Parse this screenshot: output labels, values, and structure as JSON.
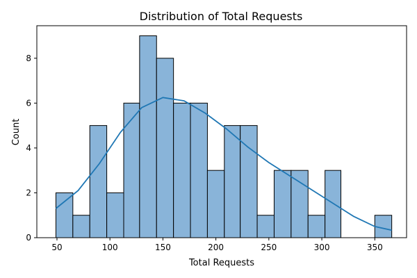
{
  "chart_data": {
    "type": "bar",
    "title": "Distribution of Total Requests",
    "xlabel": "Total Requests",
    "ylabel": "Count",
    "xlim": [
      31,
      380
    ],
    "ylim": [
      0,
      9.45
    ],
    "xticks": [
      50,
      100,
      150,
      200,
      250,
      300,
      350
    ],
    "yticks": [
      0,
      2,
      4,
      6,
      8
    ],
    "grid": false,
    "bins": [
      {
        "start": 49,
        "end": 65,
        "count": 2
      },
      {
        "start": 65,
        "end": 81,
        "count": 1
      },
      {
        "start": 81,
        "end": 97,
        "count": 5
      },
      {
        "start": 97,
        "end": 113,
        "count": 2
      },
      {
        "start": 113,
        "end": 128,
        "count": 6
      },
      {
        "start": 128,
        "end": 144,
        "count": 9
      },
      {
        "start": 144,
        "end": 160,
        "count": 8
      },
      {
        "start": 160,
        "end": 176,
        "count": 6
      },
      {
        "start": 176,
        "end": 192,
        "count": 6
      },
      {
        "start": 192,
        "end": 208,
        "count": 3
      },
      {
        "start": 208,
        "end": 223,
        "count": 5
      },
      {
        "start": 223,
        "end": 239,
        "count": 5
      },
      {
        "start": 239,
        "end": 255,
        "count": 1
      },
      {
        "start": 255,
        "end": 271,
        "count": 3
      },
      {
        "start": 271,
        "end": 287,
        "count": 3
      },
      {
        "start": 287,
        "end": 303,
        "count": 1
      },
      {
        "start": 303,
        "end": 318,
        "count": 3
      },
      {
        "start": 318,
        "end": 334,
        "count": 0
      },
      {
        "start": 334,
        "end": 350,
        "count": 0
      },
      {
        "start": 350,
        "end": 366,
        "count": 1
      }
    ],
    "kde": {
      "x": [
        49,
        70,
        90,
        110,
        130,
        150,
        170,
        190,
        210,
        230,
        250,
        270,
        290,
        310,
        330,
        350,
        366
      ],
      "y": [
        1.3,
        2.1,
        3.3,
        4.7,
        5.8,
        6.25,
        6.1,
        5.55,
        4.85,
        4.05,
        3.35,
        2.75,
        2.15,
        1.55,
        0.95,
        0.5,
        0.33
      ]
    },
    "colors": {
      "bar_fill": "#89b4d9",
      "bar_edge": "#000000",
      "kde_line": "#1f77b4"
    }
  }
}
